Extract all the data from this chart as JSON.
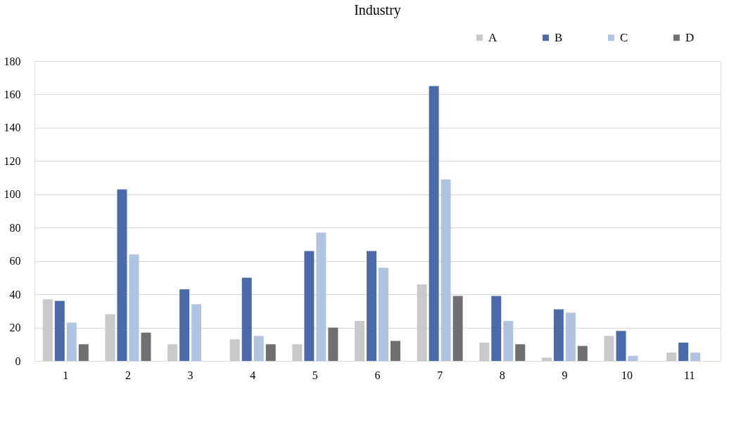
{
  "chart_data": {
    "type": "bar",
    "title": "Industry",
    "categories": [
      "1",
      "2",
      "3",
      "4",
      "5",
      "6",
      "7",
      "8",
      "9",
      "10",
      "11"
    ],
    "series": [
      {
        "name": "A",
        "color": "#c9c9c9",
        "values": [
          37,
          28,
          10,
          13,
          10,
          24,
          46,
          11,
          2,
          15,
          5
        ]
      },
      {
        "name": "B",
        "color": "#4a6aaa",
        "values": [
          36,
          103,
          43,
          50,
          66,
          66,
          165,
          39,
          31,
          18,
          11
        ]
      },
      {
        "name": "C",
        "color": "#b0c4e2",
        "values": [
          23,
          64,
          34,
          15,
          77,
          56,
          109,
          24,
          29,
          3,
          5
        ]
      },
      {
        "name": "D",
        "color": "#707070",
        "values": [
          10,
          17,
          null,
          10,
          20,
          12,
          39,
          10,
          9,
          null,
          null
        ]
      }
    ],
    "ylim": [
      0,
      180
    ],
    "yticks": [
      0,
      20,
      40,
      60,
      80,
      100,
      120,
      140,
      160,
      180
    ],
    "grid": "y",
    "legend": "top right"
  }
}
